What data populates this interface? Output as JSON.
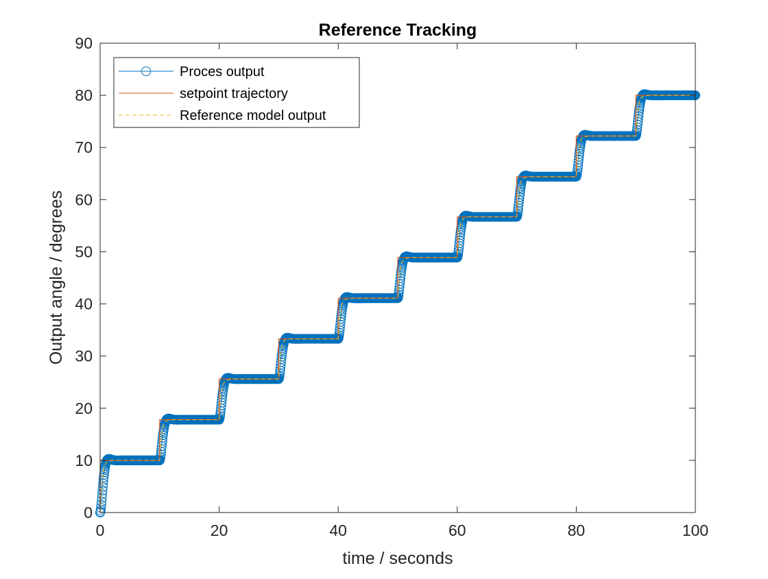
{
  "chart_data": {
    "type": "line",
    "title": "Reference Tracking",
    "xlabel": "time / seconds",
    "ylabel": "Output angle / degrees",
    "xlim": [
      0,
      100
    ],
    "ylim": [
      0,
      90
    ],
    "xticks": [
      0,
      20,
      40,
      60,
      80,
      100
    ],
    "yticks": [
      0,
      10,
      20,
      30,
      40,
      50,
      60,
      70,
      80,
      90
    ],
    "grid": false,
    "legend_position": "top-left",
    "step_times": [
      0,
      10,
      20,
      30,
      40,
      50,
      60,
      70,
      80,
      90
    ],
    "setpoint_levels": [
      10,
      17.8,
      25.6,
      33.3,
      41.1,
      48.9,
      56.7,
      64.4,
      72.2,
      80
    ],
    "series": [
      {
        "name": "Proces output",
        "color": "#0072BD",
        "style": "solid line with circle markers",
        "x": [
          0,
          0.5,
          1,
          2,
          3,
          10,
          10.5,
          11,
          12,
          13,
          20,
          20.5,
          21,
          22,
          23,
          30,
          30.5,
          31,
          32,
          33,
          40,
          40.5,
          41,
          42,
          43,
          50,
          50.5,
          51,
          52,
          53,
          60,
          60.5,
          61,
          62,
          63,
          70,
          70.5,
          71,
          72,
          73,
          80,
          80.5,
          81,
          82,
          83,
          90,
          90.5,
          91,
          92,
          93,
          100
        ],
        "values": [
          0,
          7,
          9.3,
          10,
          10,
          10,
          15.4,
          17.2,
          17.8,
          17.8,
          17.8,
          23.2,
          25.2,
          25.8,
          25.6,
          25.6,
          31,
          33,
          33.6,
          33.4,
          33.4,
          38.7,
          40.8,
          41.2,
          41.1,
          41.1,
          46.5,
          48.5,
          49,
          48.9,
          48.9,
          54.3,
          56.4,
          57,
          56.8,
          56.7,
          62.1,
          64.2,
          64.7,
          64.5,
          64.4,
          69.8,
          71.9,
          72.4,
          72.3,
          72.2,
          77.6,
          79.8,
          80.5,
          80.2,
          80
        ]
      },
      {
        "name": "setpoint trajectory",
        "color": "#D95319",
        "style": "solid",
        "x": [
          0,
          0,
          10,
          10,
          20,
          20,
          30,
          30,
          40,
          40,
          50,
          50,
          60,
          60,
          70,
          70,
          80,
          80,
          90,
          90,
          100
        ],
        "values": [
          0,
          10,
          10,
          17.8,
          17.8,
          25.6,
          25.6,
          33.3,
          33.3,
          41.1,
          41.1,
          48.9,
          48.9,
          56.7,
          56.7,
          64.4,
          64.4,
          72.2,
          72.2,
          80,
          80
        ]
      },
      {
        "name": "Reference model output",
        "color": "#EDB120",
        "style": "dashed",
        "x": [
          0,
          0.3,
          0.6,
          1,
          2,
          10,
          10.3,
          10.6,
          11,
          12,
          20,
          20.3,
          20.6,
          21,
          22,
          30,
          30.3,
          30.6,
          31,
          32,
          40,
          40.3,
          40.6,
          41,
          42,
          50,
          50.3,
          50.6,
          51,
          52,
          60,
          60.3,
          60.6,
          61,
          62,
          70,
          70.3,
          70.6,
          71,
          72,
          80,
          80.3,
          80.6,
          81,
          82,
          90,
          90.3,
          90.6,
          91,
          92,
          100
        ],
        "values": [
          0,
          5.5,
          8.4,
          9.6,
          10,
          10,
          14.3,
          16.6,
          17.5,
          17.8,
          17.8,
          22.1,
          24.4,
          25.3,
          25.6,
          25.6,
          29.9,
          32.2,
          33.1,
          33.3,
          33.3,
          37.6,
          39.9,
          40.8,
          41.1,
          41.1,
          45.4,
          47.7,
          48.6,
          48.9,
          48.9,
          53.2,
          55.5,
          56.4,
          56.7,
          56.7,
          60.9,
          63.2,
          64.1,
          64.4,
          64.4,
          68.7,
          71,
          71.9,
          72.2,
          72.2,
          76.5,
          78.8,
          79.7,
          80,
          80
        ]
      }
    ]
  }
}
